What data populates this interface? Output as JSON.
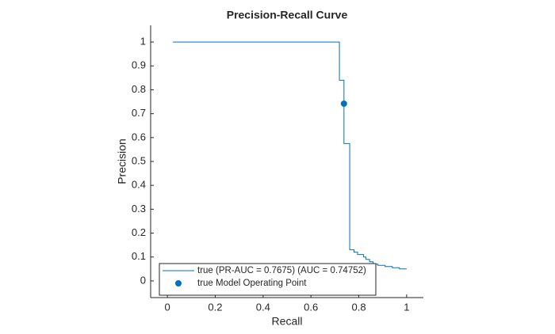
{
  "chart_data": {
    "type": "line",
    "title": "Precision-Recall Curve",
    "x_label": "Recall",
    "y_label": "Precision",
    "xlim": [
      -0.07,
      1.07
    ],
    "ylim": [
      -0.07,
      1.07
    ],
    "xticks": [
      0,
      0.2,
      0.4,
      0.6,
      0.8,
      1
    ],
    "yticks": [
      0,
      0.1,
      0.2,
      0.3,
      0.4,
      0.5,
      0.6,
      0.7,
      0.8,
      0.9,
      1
    ],
    "grid": false,
    "legend_position": "lower-left",
    "series": [
      {
        "name": "true (PR-AUC = 0.7675) (AUC = 0.74752)",
        "color": "#0072bd",
        "x": [
          0.023,
          0.719,
          0.719,
          0.738,
          0.738,
          0.762,
          0.762,
          0.78,
          0.78,
          0.795,
          0.795,
          0.82,
          0.82,
          0.83,
          0.83,
          0.845,
          0.845,
          0.86,
          0.86,
          0.88,
          0.88,
          0.91,
          0.91,
          0.94,
          0.94,
          0.97,
          0.97,
          1.0
        ],
        "values": [
          1,
          1,
          0.84,
          0.84,
          0.575,
          0.575,
          0.13,
          0.13,
          0.12,
          0.12,
          0.11,
          0.11,
          0.1,
          0.1,
          0.09,
          0.09,
          0.08,
          0.08,
          0.07,
          0.07,
          0.065,
          0.065,
          0.06,
          0.06,
          0.055,
          0.055,
          0.05,
          0.05
        ]
      },
      {
        "name": "true Model Operating Point",
        "color": "#0072bd",
        "marker": "o",
        "x": [
          0.738
        ],
        "values": [
          0.742
        ]
      }
    ]
  }
}
